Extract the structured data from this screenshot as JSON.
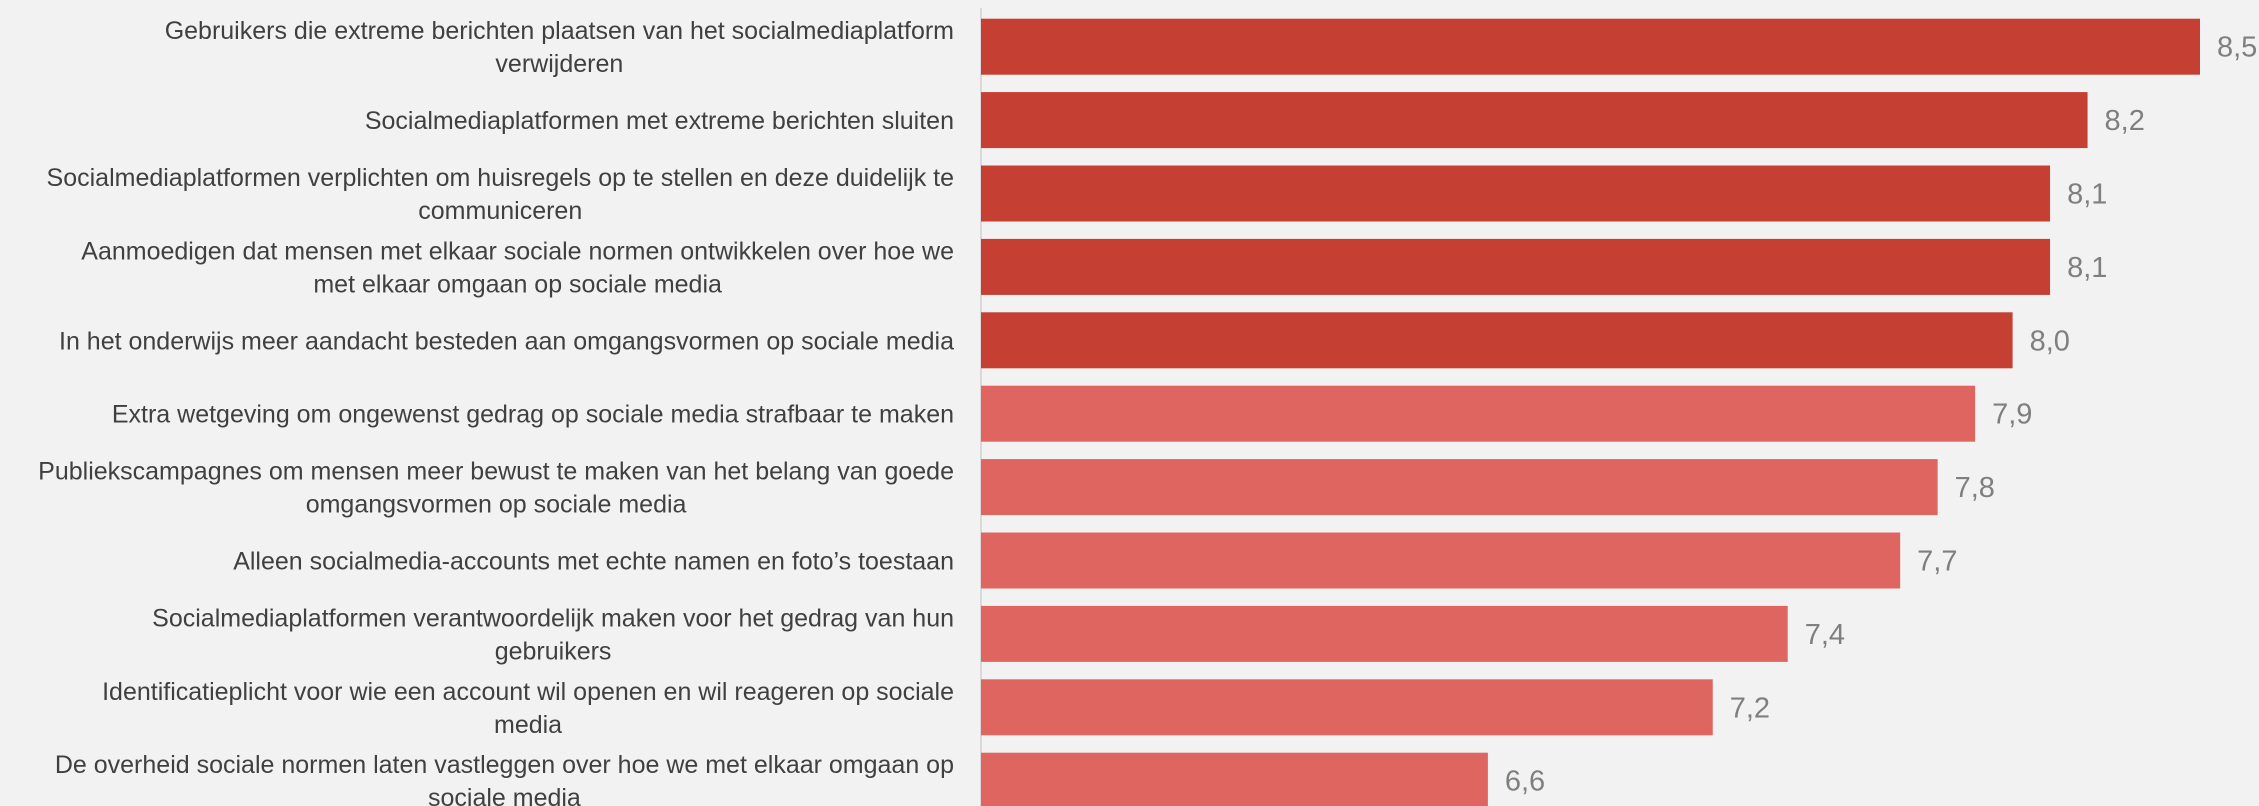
{
  "chart_data": {
    "type": "bar",
    "orientation": "horizontal",
    "title": "",
    "xlabel": "",
    "ylabel": "",
    "xlim": [
      6,
      8.5
    ],
    "grid": false,
    "legend": "none",
    "categories": [
      "Gebruikers die extreme berichten plaatsen van het socialmediaplatform verwijderen",
      "Socialmediaplatformen met extreme berichten sluiten",
      "Socialmediaplatformen verplichten om huisregels op te stellen en deze duidelijk te communiceren",
      "Aanmoedigen dat mensen met elkaar sociale normen ontwikkelen over hoe we met elkaar omgaan op sociale media",
      "In het onderwijs meer aandacht besteden aan omgangsvormen op sociale media",
      "Extra wetgeving om ongewenst gedrag op sociale media strafbaar te maken",
      "Publiekscampagnes om mensen meer bewust te maken van het belang van goede omgangsvormen op sociale media",
      "Alleen socialmedia-accounts met echte namen en foto’s toestaan",
      "Socialmediaplatformen verantwoordelijk maken voor het gedrag van hun gebruikers",
      "Identificatieplicht voor wie een account wil openen en wil reageren op sociale media",
      "De overheid sociale normen laten vastleggen over hoe we met elkaar omgaan op sociale media"
    ],
    "label_lines": [
      [
        "Gebruikers die extreme berichten plaatsen van het socialmediaplatform",
        "verwijderen"
      ],
      [
        "Socialmediaplatformen met extreme berichten sluiten"
      ],
      [
        "Socialmediaplatformen verplichten om huisregels op te stellen en deze duidelijk te",
        "communiceren"
      ],
      [
        "Aanmoedigen dat mensen met elkaar sociale normen ontwikkelen over hoe we",
        "met elkaar omgaan op sociale media"
      ],
      [
        "In het onderwijs meer aandacht besteden aan omgangsvormen op sociale media"
      ],
      [
        "Extra wetgeving om ongewenst gedrag op sociale media strafbaar te maken"
      ],
      [
        "Publiekscampagnes om mensen meer bewust te maken van het belang van goede",
        "omgangsvormen op sociale media"
      ],
      [
        "Alleen socialmedia-accounts met echte namen en foto’s toestaan"
      ],
      [
        "Socialmediaplatformen verantwoordelijk maken voor het gedrag van hun",
        "gebruikers"
      ],
      [
        "Identificatieplicht voor wie een account wil openen en wil reageren op sociale",
        "media"
      ],
      [
        "De overheid sociale normen laten vastleggen over hoe we met elkaar omgaan op",
        "sociale media"
      ]
    ],
    "values": [
      8.5,
      8.2,
      8.1,
      8.1,
      8.0,
      7.9,
      7.8,
      7.7,
      7.4,
      7.2,
      6.6
    ],
    "value_labels": [
      "8,5",
      "8,2",
      "8,1",
      "8,1",
      "8,0",
      "7,9",
      "7,8",
      "7,7",
      "7,4",
      "7,2",
      "6,6"
    ],
    "bar_colors": [
      "#c63f33",
      "#c63f33",
      "#c63f33",
      "#c63f33",
      "#c63f33",
      "#df6660",
      "#df6660",
      "#df6660",
      "#df6660",
      "#df6660",
      "#df6660"
    ]
  },
  "colors": {
    "background": "#f2f2f2",
    "axis": "#d9d9d9",
    "label_text": "#404040",
    "value_text": "#7f7f7f"
  }
}
